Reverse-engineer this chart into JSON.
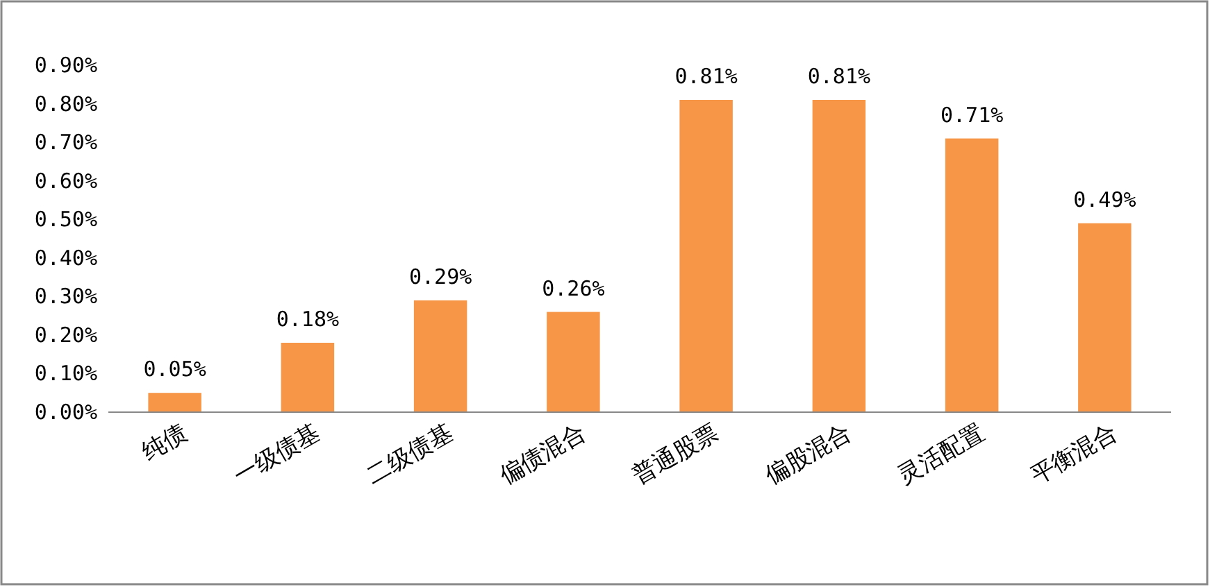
{
  "chart_data": {
    "type": "bar",
    "categories": [
      "纯债",
      "一级债基",
      "二级债基",
      "偏债混合",
      "普通股票",
      "偏股混合",
      "灵活配置",
      "平衡混合"
    ],
    "values": [
      0.05,
      0.18,
      0.29,
      0.26,
      0.81,
      0.81,
      0.71,
      0.49
    ],
    "value_labels": [
      "0.05%",
      "0.18%",
      "0.29%",
      "0.26%",
      "0.81%",
      "0.81%",
      "0.71%",
      "0.49%"
    ],
    "color": "#f79646",
    "ylim": [
      0,
      0.9
    ],
    "yticks": [
      {
        "value": 0,
        "label": "0.00%"
      },
      {
        "value": 0.1,
        "label": "0.10%"
      },
      {
        "value": 0.2,
        "label": "0.20%"
      },
      {
        "value": 0.3,
        "label": "0.30%"
      },
      {
        "value": 0.4,
        "label": "0.40%"
      },
      {
        "value": 0.5,
        "label": "0.50%"
      },
      {
        "value": 0.6,
        "label": "0.60%"
      },
      {
        "value": 0.7,
        "label": "0.70%"
      },
      {
        "value": 0.8,
        "label": "0.80%"
      },
      {
        "value": 0.9,
        "label": "0.90%"
      }
    ]
  }
}
